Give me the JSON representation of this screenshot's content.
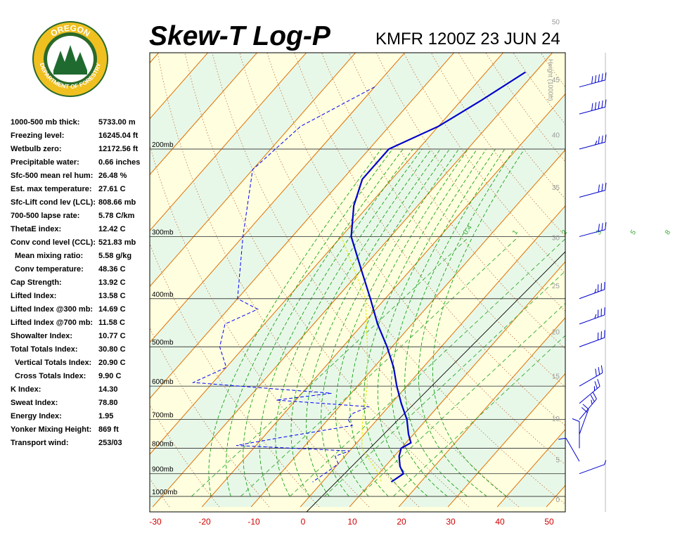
{
  "header": {
    "title": "Skew-T Log-P",
    "station": "KMFR 1200Z 23 JUN 24",
    "logo": {
      "top_text": "OREGON",
      "bottom_text": "DEPARTMENT OF FORESTRY"
    }
  },
  "stats": [
    {
      "label": "1000-500 mb thick:",
      "value": "5733.00 m",
      "indent": false
    },
    {
      "label": "Freezing level:",
      "value": "16245.04 ft",
      "indent": false
    },
    {
      "label": "Wetbulb zero:",
      "value": "12172.56 ft",
      "indent": false
    },
    {
      "label": "Precipitable water:",
      "value": "0.66 inches",
      "indent": false
    },
    {
      "label": "Sfc-500 mean rel hum:",
      "value": "26.48 %",
      "indent": false
    },
    {
      "label": "Est. max temperature:",
      "value": "27.61 C",
      "indent": false
    },
    {
      "label": "Sfc-Lift cond lev (LCL):",
      "value": "808.66 mb",
      "indent": false
    },
    {
      "label": "700-500 lapse rate:",
      "value": "5.78 C/km",
      "indent": false
    },
    {
      "label": "ThetaE index:",
      "value": "12.42 C",
      "indent": false
    },
    {
      "label": "Conv cond level (CCL):",
      "value": "521.83 mb",
      "indent": false
    },
    {
      "label": "Mean mixing ratio:",
      "value": "5.58 g/kg",
      "indent": true
    },
    {
      "label": "Conv temperature:",
      "value": "48.36 C",
      "indent": true
    },
    {
      "label": "Cap Strength:",
      "value": "13.92 C",
      "indent": false
    },
    {
      "label": "Lifted Index:",
      "value": "13.58 C",
      "indent": false
    },
    {
      "label": "Lifted Index @300 mb:",
      "value": "14.69 C",
      "indent": false
    },
    {
      "label": "Lifted Index @700 mb:",
      "value": "11.58 C",
      "indent": false
    },
    {
      "label": "Showalter Index:",
      "value": "10.77 C",
      "indent": false
    },
    {
      "label": "Total Totals Index:",
      "value": "30.80 C",
      "indent": false
    },
    {
      "label": "Vertical Totals Index:",
      "value": "20.90 C",
      "indent": true
    },
    {
      "label": "Cross Totals Index:",
      "value": "9.90 C",
      "indent": true
    },
    {
      "label": "K Index:",
      "value": "14.30",
      "indent": false
    },
    {
      "label": "Sweat Index:",
      "value": "78.80",
      "indent": false
    },
    {
      "label": "Energy Index:",
      "value": "1.95",
      "indent": false
    },
    {
      "label": "Yonker Mixing Height:",
      "value": "869 ft",
      "indent": false
    },
    {
      "label": "Transport wind:",
      "value": "253/03",
      "indent": false
    }
  ],
  "chart_data": {
    "type": "line",
    "pressure_levels": [
      {
        "p": 200,
        "label": "200mb"
      },
      {
        "p": 300,
        "label": "300mb"
      },
      {
        "p": 400,
        "label": "400mb"
      },
      {
        "p": 500,
        "label": "500mb"
      },
      {
        "p": 600,
        "label": "600mb"
      },
      {
        "p": 700,
        "label": "700mb"
      },
      {
        "p": 800,
        "label": "800mb"
      },
      {
        "p": 900,
        "label": "900mb"
      },
      {
        "p": 1000,
        "label": "1000mb"
      }
    ],
    "x_ticks": [
      "-30",
      "-20",
      "-10",
      "0",
      "10",
      "20",
      "30",
      "40",
      "50"
    ],
    "height_axis": {
      "label": "Height (1000ft)",
      "ticks": [
        "0",
        "5",
        "10",
        "15",
        "20",
        "25",
        "30",
        "35",
        "40",
        "45",
        "50"
      ]
    },
    "mixing_ratio_labels": [
      "0.4",
      "1",
      "2",
      "3",
      "5",
      "8"
    ],
    "temperature": [
      {
        "p": 140,
        "t": -32
      },
      {
        "p": 160,
        "t": -36
      },
      {
        "p": 180,
        "t": -40
      },
      {
        "p": 200,
        "t": -46
      },
      {
        "p": 230,
        "t": -46
      },
      {
        "p": 260,
        "t": -43
      },
      {
        "p": 300,
        "t": -38
      },
      {
        "p": 350,
        "t": -30
      },
      {
        "p": 400,
        "t": -23
      },
      {
        "p": 450,
        "t": -17
      },
      {
        "p": 500,
        "t": -11
      },
      {
        "p": 550,
        "t": -6
      },
      {
        "p": 600,
        "t": -2
      },
      {
        "p": 650,
        "t": 2
      },
      {
        "p": 700,
        "t": 6
      },
      {
        "p": 750,
        "t": 9
      },
      {
        "p": 780,
        "t": 11
      },
      {
        "p": 800,
        "t": 10
      },
      {
        "p": 830,
        "t": 11
      },
      {
        "p": 870,
        "t": 13
      },
      {
        "p": 900,
        "t": 15
      },
      {
        "p": 935,
        "t": 14
      }
    ],
    "dewpoint": [
      {
        "p": 150,
        "t": -60
      },
      {
        "p": 180,
        "t": -68
      },
      {
        "p": 220,
        "t": -70
      },
      {
        "p": 300,
        "t": -60
      },
      {
        "p": 400,
        "t": -50
      },
      {
        "p": 420,
        "t": -44
      },
      {
        "p": 450,
        "t": -48
      },
      {
        "p": 500,
        "t": -45
      },
      {
        "p": 550,
        "t": -40
      },
      {
        "p": 590,
        "t": -44
      },
      {
        "p": 620,
        "t": -14
      },
      {
        "p": 640,
        "t": -24
      },
      {
        "p": 660,
        "t": -4
      },
      {
        "p": 680,
        "t": -6
      },
      {
        "p": 700,
        "t": -6
      },
      {
        "p": 720,
        "t": -4
      },
      {
        "p": 760,
        "t": -16
      },
      {
        "p": 790,
        "t": -24
      },
      {
        "p": 810,
        "t": 0
      },
      {
        "p": 830,
        "t": -2
      },
      {
        "p": 860,
        "t": 0
      },
      {
        "p": 900,
        "t": -1
      },
      {
        "p": 935,
        "t": -2
      }
    ],
    "parcel": [
      {
        "p": 300,
        "t": -40
      },
      {
        "p": 400,
        "t": -24
      },
      {
        "p": 500,
        "t": -15
      },
      {
        "p": 600,
        "t": -8
      },
      {
        "p": 700,
        "t": -3
      },
      {
        "p": 800,
        "t": 2
      },
      {
        "p": 900,
        "t": 10
      },
      {
        "p": 935,
        "t": 12
      }
    ],
    "wind_barbs": [
      {
        "p": 150,
        "dir": 255,
        "kt": 50
      },
      {
        "p": 170,
        "dir": 255,
        "kt": 50
      },
      {
        "p": 200,
        "dir": 255,
        "kt": 35
      },
      {
        "p": 250,
        "dir": 255,
        "kt": 30
      },
      {
        "p": 300,
        "dir": 255,
        "kt": 30
      },
      {
        "p": 400,
        "dir": 250,
        "kt": 35
      },
      {
        "p": 450,
        "dir": 250,
        "kt": 35
      },
      {
        "p": 500,
        "dir": 250,
        "kt": 30
      },
      {
        "p": 600,
        "dir": 240,
        "kt": 30
      },
      {
        "p": 650,
        "dir": 230,
        "kt": 25
      },
      {
        "p": 700,
        "dir": 220,
        "kt": 25
      },
      {
        "p": 750,
        "dir": 200,
        "kt": 20
      },
      {
        "p": 800,
        "dir": 180,
        "kt": 10
      },
      {
        "p": 850,
        "dir": 150,
        "kt": 10
      },
      {
        "p": 900,
        "dir": 250,
        "kt": 5
      }
    ],
    "colors": {
      "temperature": "#0000cc",
      "dewpoint": "#0000ff",
      "parcel": "#e6e600",
      "isotherm": "#e07000",
      "dry_adiabat": "#c07040",
      "moist_adiabat": "#009900",
      "mixing_ratio": "#33aa33",
      "shade": "#e8f8e8",
      "background": "#ffffe0"
    }
  }
}
